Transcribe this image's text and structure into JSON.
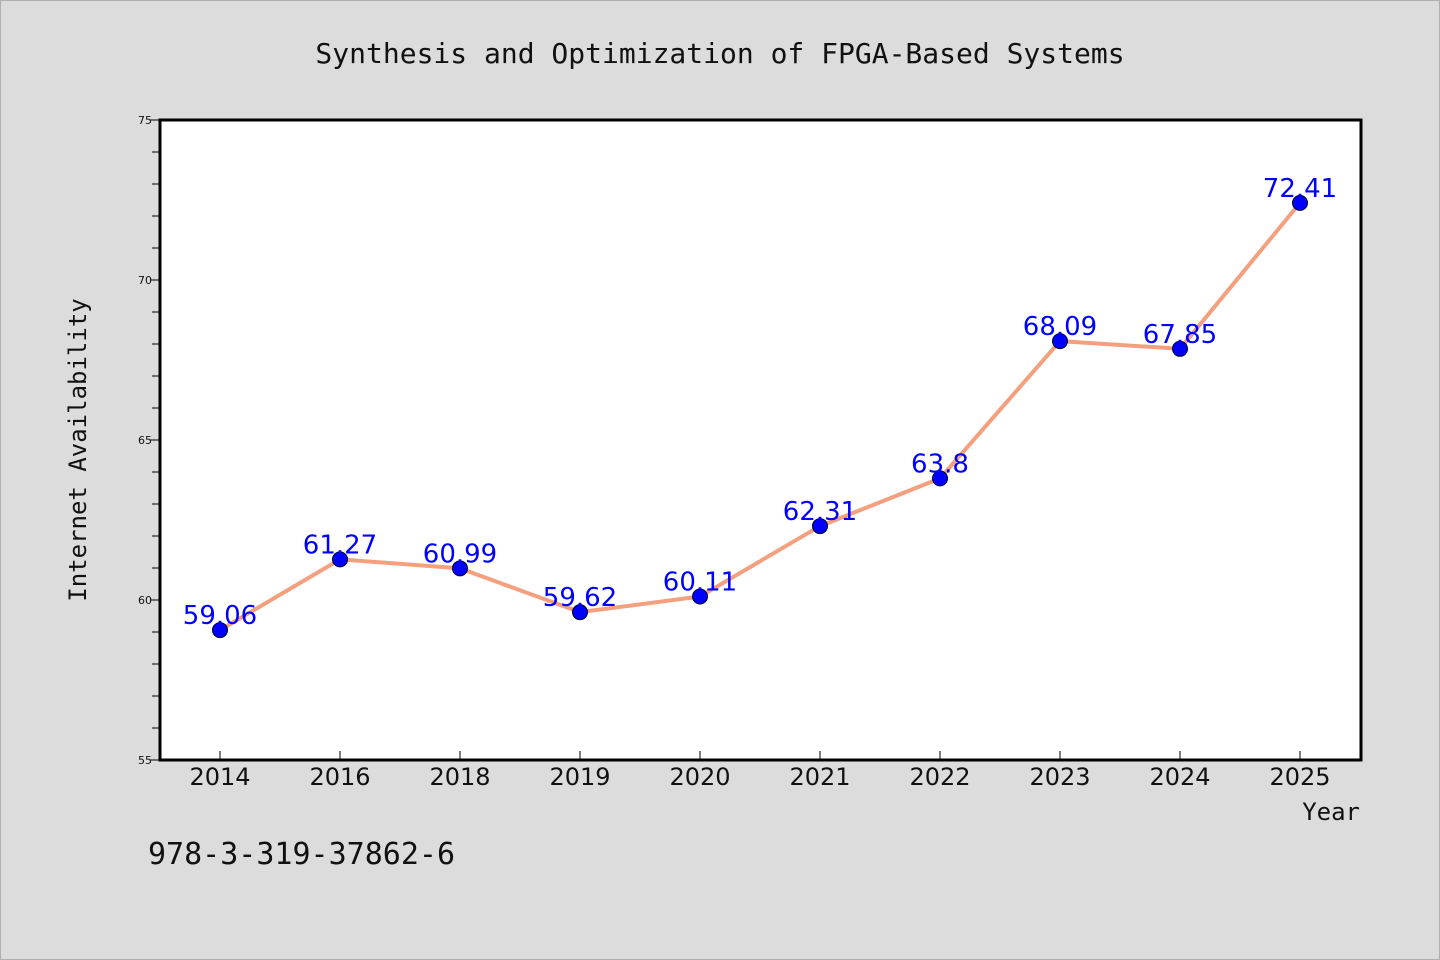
{
  "chart_data": {
    "type": "line",
    "title": "Synthesis and Optimization of FPGA-Based Systems",
    "xlabel": "Year",
    "ylabel": "Internet Availability",
    "categories": [
      "2014",
      "2016",
      "2018",
      "2019",
      "2020",
      "2021",
      "2022",
      "2023",
      "2024",
      "2025"
    ],
    "series": [
      {
        "values": [
          59.06,
          61.27,
          60.99,
          59.62,
          60.11,
          62.31,
          63.8,
          68.09,
          67.85,
          72.41
        ],
        "labels": [
          "59.06",
          "61.27",
          "60.99",
          "59.62",
          "60.11",
          "62.31",
          "63.8",
          "68.09",
          "67.85",
          "72.41"
        ]
      }
    ],
    "ylim": [
      55,
      75
    ],
    "yticks": [
      55,
      60,
      65,
      70,
      75
    ],
    "ytick_labels": [
      "55",
      "60",
      "65",
      "70",
      "75"
    ],
    "grid": false,
    "colors": {
      "line": "#f4a07e",
      "marker": "#0000ff",
      "data_label": "#0000ff",
      "background": "#dcdcdc",
      "plot_background": "#ffffff"
    }
  },
  "footer_text": "978-3-319-37862-6"
}
